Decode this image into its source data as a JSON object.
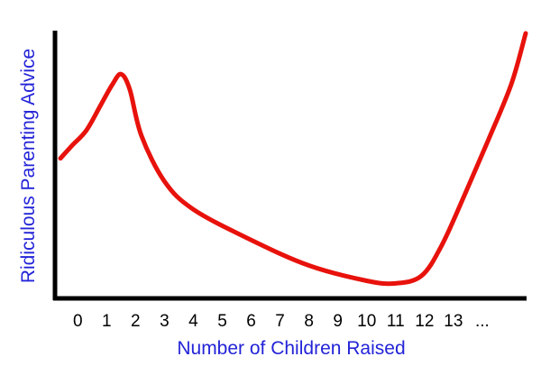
{
  "chart_data": {
    "type": "line",
    "title": "",
    "xlabel": "Number of Children Raised",
    "ylabel": "Ridiculous Parenting Advice",
    "x_tick_labels": [
      "0",
      "1",
      "2",
      "3",
      "4",
      "5",
      "6",
      "7",
      "8",
      "9",
      "10",
      "11",
      "12",
      "13",
      "..."
    ],
    "x_tick_positions": [
      0,
      1,
      2,
      3,
      4,
      5,
      6,
      7,
      8,
      9,
      10,
      11,
      12,
      13,
      14
    ],
    "xlim": [
      -0.6,
      15.5
    ],
    "ylim": [
      0,
      100
    ],
    "y_ticks_shown": false,
    "grid": false,
    "legend": false,
    "series": [
      {
        "name": "",
        "x": [
          -0.6,
          -0.2,
          0.3,
          0.8,
          1.2,
          1.5,
          1.8,
          2.2,
          3.0,
          4.0,
          6.0,
          8.0,
          10.0,
          11.0,
          11.9,
          12.6,
          13.4,
          14.2,
          15.0,
          15.5
        ],
        "y": [
          51,
          56,
          62,
          72,
          80,
          84,
          78,
          60,
          42,
          31,
          19,
          9,
          3,
          2,
          5,
          17,
          37,
          58,
          80,
          100
        ]
      }
    ],
    "colors": {
      "line": "#e8120c",
      "axes": "#000000",
      "axis_title": "#2323d8",
      "tick_label": "#000000"
    }
  }
}
